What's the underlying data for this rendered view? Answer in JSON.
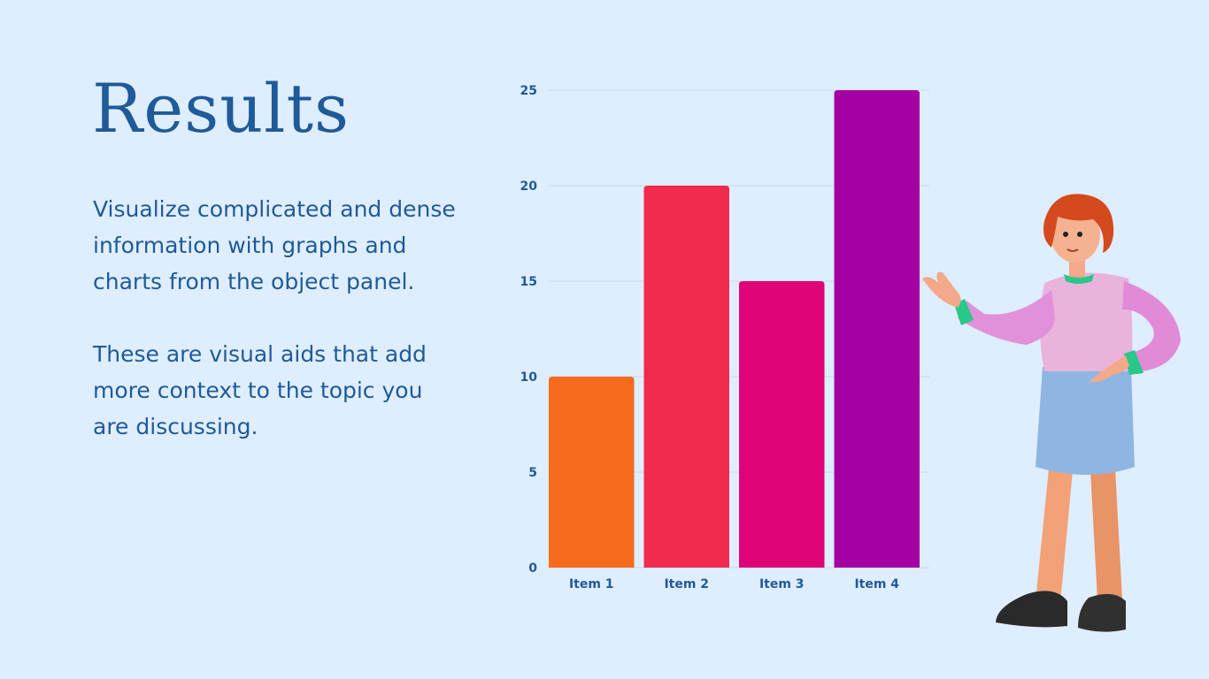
{
  "slide": {
    "title": "Results",
    "paragraphs": [
      "Visualize complicated and dense information with graphs and charts from the object panel.",
      "These are visual aids that add more context to the topic you are discussing."
    ]
  },
  "colors": {
    "background": "#dfeefe",
    "text": "#1f5a99",
    "gridline": "#c9d8ea"
  },
  "illustration": "woman-presenting-icon",
  "chart_data": {
    "type": "bar",
    "categories": [
      "Item 1",
      "Item 2",
      "Item 3",
      "Item 4"
    ],
    "values": [
      10,
      20,
      15,
      25
    ],
    "colors": [
      "#f76b1f",
      "#f22a4e",
      "#de0478",
      "#a400a1"
    ],
    "ylim": [
      0,
      25
    ],
    "yticks": [
      0,
      5,
      10,
      15,
      20,
      25
    ],
    "grid": true
  }
}
